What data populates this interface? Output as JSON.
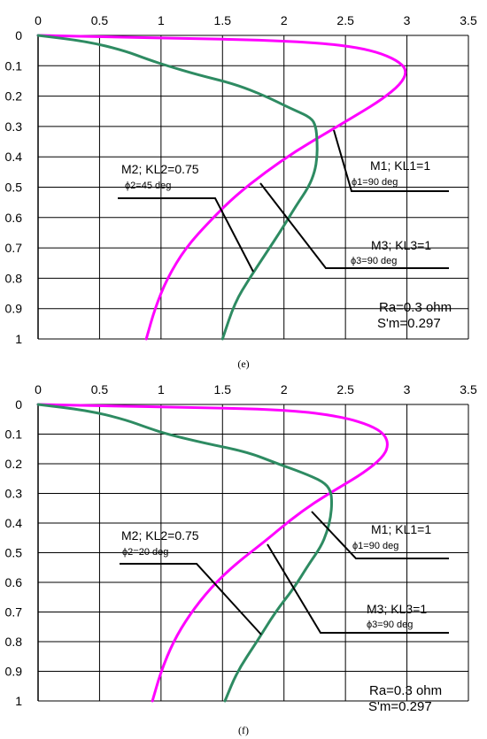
{
  "colors": {
    "magenta_series": "#ff00ff",
    "green_series": "#2e8b62",
    "grid": "#000000"
  },
  "chart_data": [
    {
      "type": "line",
      "panel_label": "(e)",
      "x_ticks": [
        "0",
        "0.5",
        "1",
        "1.5",
        "2",
        "2.5",
        "3",
        "3.5"
      ],
      "y_ticks": [
        "0",
        "0.1",
        "0.2",
        "0.3",
        "0.4",
        "0.5",
        "0.6",
        "0.7",
        "0.8",
        "0.9",
        "1"
      ],
      "xlim": [
        0,
        3.5
      ],
      "ylim": [
        0,
        1
      ],
      "x_axis_position": "top",
      "y_axis_inverted": true,
      "grid": true,
      "series": [
        {
          "color": "#ff00ff",
          "points": [
            [
              0,
              0
            ],
            [
              0.6,
              0.005
            ],
            [
              1.2,
              0.01
            ],
            [
              1.8,
              0.015
            ],
            [
              2.3,
              0.025
            ],
            [
              2.6,
              0.04
            ],
            [
              2.8,
              0.06
            ],
            [
              2.95,
              0.09
            ],
            [
              3.0,
              0.12
            ],
            [
              2.95,
              0.16
            ],
            [
              2.8,
              0.21
            ],
            [
              2.6,
              0.26
            ],
            [
              2.35,
              0.32
            ],
            [
              2.1,
              0.38
            ],
            [
              1.85,
              0.45
            ],
            [
              1.6,
              0.53
            ],
            [
              1.4,
              0.61
            ],
            [
              1.2,
              0.7
            ],
            [
              1.05,
              0.8
            ],
            [
              0.95,
              0.9
            ],
            [
              0.88,
              1.0
            ]
          ]
        },
        {
          "color": "#2e8b62",
          "points": [
            [
              0,
              0
            ],
            [
              0.4,
              0.02
            ],
            [
              0.7,
              0.05
            ],
            [
              0.9,
              0.08
            ],
            [
              1.05,
              0.1
            ],
            [
              1.3,
              0.13
            ],
            [
              1.6,
              0.16
            ],
            [
              1.85,
              0.2
            ],
            [
              2.05,
              0.24
            ],
            [
              2.22,
              0.27
            ],
            [
              2.26,
              0.3
            ],
            [
              2.27,
              0.35
            ],
            [
              2.27,
              0.4
            ],
            [
              2.25,
              0.45
            ],
            [
              2.2,
              0.5
            ],
            [
              2.1,
              0.56
            ],
            [
              1.98,
              0.64
            ],
            [
              1.85,
              0.72
            ],
            [
              1.72,
              0.8
            ],
            [
              1.6,
              0.88
            ],
            [
              1.5,
              1.0
            ]
          ]
        }
      ],
      "annotations": [
        {
          "title": "M1;  KL1=1",
          "subtitle": "ϕ1=90 deg"
        },
        {
          "title": "M2; KL2=0.75",
          "subtitle": "ϕ2=45 deg"
        },
        {
          "title": "M3; KL3=1",
          "subtitle": "ϕ3=90 deg"
        }
      ],
      "info": [
        "Ra=0.3 ohm",
        "S'm=0.297"
      ]
    },
    {
      "type": "line",
      "panel_label": "(f)",
      "x_ticks": [
        "0",
        "0.5",
        "1",
        "1.5",
        "2",
        "2.5",
        "3",
        "3.5"
      ],
      "y_ticks": [
        "0",
        "0.1",
        "0.2",
        "0.3",
        "0.4",
        "0.5",
        "0.6",
        "0.7",
        "0.8",
        "0.9",
        "1"
      ],
      "xlim": [
        0,
        3.5
      ],
      "ylim": [
        0,
        1
      ],
      "x_axis_position": "top",
      "y_axis_inverted": true,
      "grid": true,
      "series": [
        {
          "color": "#ff00ff",
          "points": [
            [
              0,
              0
            ],
            [
              0.6,
              0.005
            ],
            [
              1.2,
              0.01
            ],
            [
              1.8,
              0.015
            ],
            [
              2.2,
              0.025
            ],
            [
              2.5,
              0.045
            ],
            [
              2.7,
              0.07
            ],
            [
              2.82,
              0.1
            ],
            [
              2.85,
              0.14
            ],
            [
              2.8,
              0.18
            ],
            [
              2.65,
              0.23
            ],
            [
              2.45,
              0.28
            ],
            [
              2.25,
              0.33
            ],
            [
              2.05,
              0.39
            ],
            [
              1.85,
              0.46
            ],
            [
              1.6,
              0.54
            ],
            [
              1.4,
              0.62
            ],
            [
              1.23,
              0.71
            ],
            [
              1.1,
              0.8
            ],
            [
              1.0,
              0.9
            ],
            [
              0.93,
              1.0
            ]
          ]
        },
        {
          "color": "#2e8b62",
          "points": [
            [
              0,
              0
            ],
            [
              0.4,
              0.02
            ],
            [
              0.7,
              0.05
            ],
            [
              0.9,
              0.08
            ],
            [
              1.05,
              0.1
            ],
            [
              1.35,
              0.13
            ],
            [
              1.7,
              0.16
            ],
            [
              1.95,
              0.2
            ],
            [
              2.15,
              0.23
            ],
            [
              2.32,
              0.26
            ],
            [
              2.38,
              0.29
            ],
            [
              2.39,
              0.33
            ],
            [
              2.38,
              0.38
            ],
            [
              2.35,
              0.43
            ],
            [
              2.3,
              0.48
            ],
            [
              2.2,
              0.54
            ],
            [
              2.08,
              0.62
            ],
            [
              1.93,
              0.7
            ],
            [
              1.78,
              0.8
            ],
            [
              1.62,
              0.9
            ],
            [
              1.52,
              1.0
            ]
          ]
        }
      ],
      "annotations": [
        {
          "title": "M1;  KL1=1",
          "subtitle": "ϕ1=90 deg"
        },
        {
          "title": "M2; KL2=0.75",
          "subtitle": "ϕ2=20 deg"
        },
        {
          "title": "M3; KL3=1",
          "subtitle": "ϕ3=90 deg"
        }
      ],
      "info": [
        "Ra=0.3 ohm",
        "S'm=0.297"
      ]
    }
  ]
}
